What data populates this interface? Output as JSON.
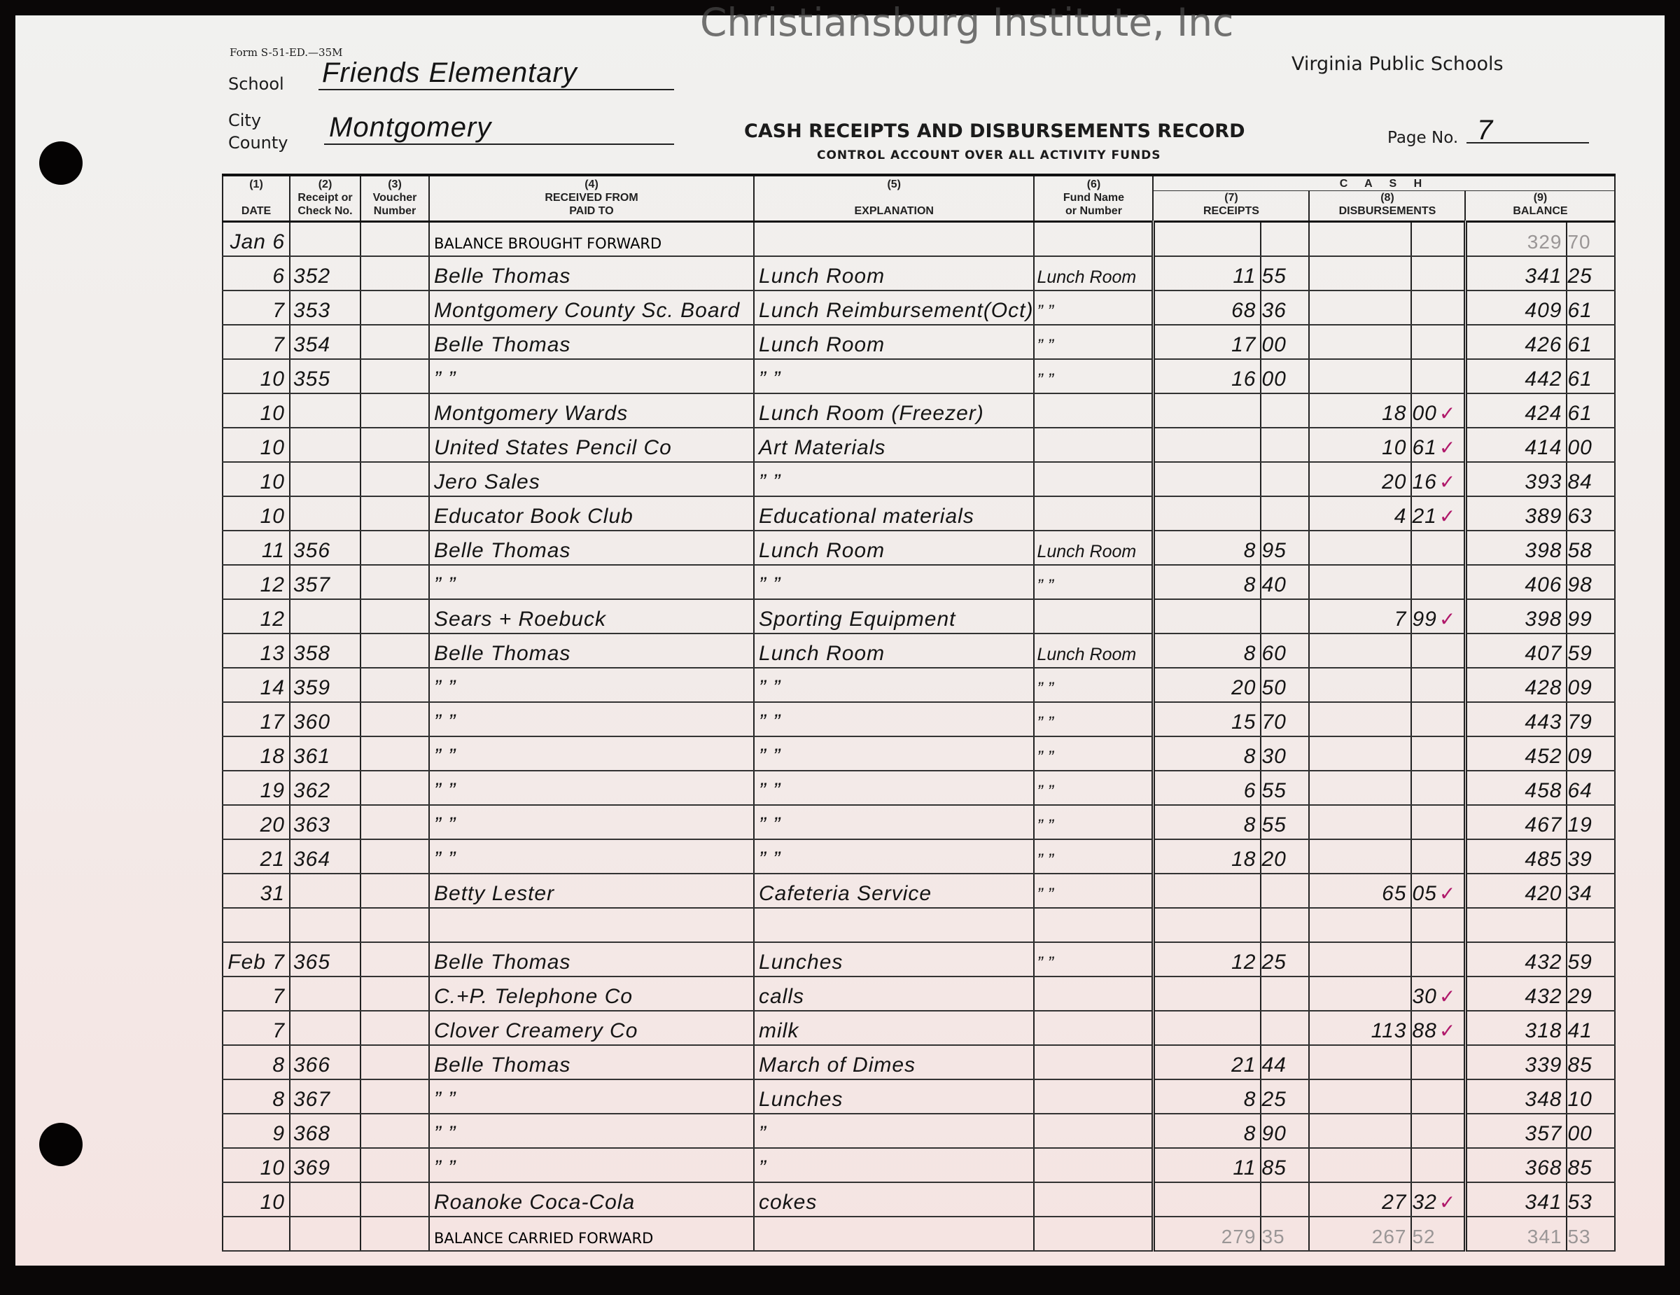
{
  "form_code": "Form S-51-ED.—35M",
  "issuer": "Virginia Public Schools",
  "labels": {
    "school": "School",
    "city": "City",
    "county": "County",
    "page": "Page No."
  },
  "school": "Friends Elementary",
  "county": "Montgomery",
  "title": "CASH RECEIPTS AND DISBURSEMENTS RECORD",
  "subtitle": "CONTROL ACCOUNT OVER ALL ACTIVITY FUNDS",
  "page_no": "7",
  "columns": {
    "c1": [
      "(1)",
      "DATE"
    ],
    "c2": [
      "(2)",
      "Receipt or",
      "Check No."
    ],
    "c3": [
      "(3)",
      "Voucher",
      "Number"
    ],
    "c4": [
      "(4)",
      "RECEIVED FROM",
      "PAID TO"
    ],
    "c5": [
      "(5)",
      "EXPLANATION"
    ],
    "c6": [
      "(6)",
      "Fund Name",
      "or Number"
    ],
    "cash": "C A S H",
    "c7": [
      "(7)",
      "RECEIPTS"
    ],
    "c8": [
      "(8)",
      "DISBURSEMENTS"
    ],
    "c9": [
      "(9)",
      "BALANCE"
    ]
  },
  "rows": [
    {
      "date": "Jan 6",
      "check": "",
      "voucher": "",
      "party": "BALANCE BROUGHT FORWARD",
      "printed": true,
      "explanation": "",
      "fund": "",
      "receipt": [
        "",
        ""
      ],
      "disb": [
        "",
        ""
      ],
      "balance": [
        "329",
        "70"
      ],
      "balance_pencil": true
    },
    {
      "date": "6",
      "check": "352",
      "party": "Belle Thomas",
      "explanation": "Lunch Room",
      "fund": "Lunch Room",
      "receipt": [
        "11",
        "55"
      ],
      "disb": [
        "",
        ""
      ],
      "balance": [
        "341",
        "25"
      ]
    },
    {
      "date": "7",
      "check": "353",
      "party": "Montgomery County Sc. Board",
      "explanation": "Lunch Reimbursement(Oct)",
      "fund": "”   ”",
      "receipt": [
        "68",
        "36"
      ],
      "disb": [
        "",
        ""
      ],
      "balance": [
        "409",
        "61"
      ]
    },
    {
      "date": "7",
      "check": "354",
      "party": "Belle Thomas",
      "explanation": "Lunch Room",
      "fund": "”   ”",
      "receipt": [
        "17",
        "00"
      ],
      "disb": [
        "",
        ""
      ],
      "balance": [
        "426",
        "61"
      ]
    },
    {
      "date": "10",
      "check": "355",
      "party": "”      ”",
      "explanation": "”      ”",
      "fund": "”   ”",
      "receipt": [
        "16",
        "00"
      ],
      "disb": [
        "",
        ""
      ],
      "balance": [
        "442",
        "61"
      ]
    },
    {
      "date": "10",
      "check": "",
      "party": "Montgomery Wards",
      "explanation": "Lunch Room (Freezer)",
      "fund": "",
      "receipt": [
        "",
        ""
      ],
      "disb": [
        "18",
        "00"
      ],
      "mark": "✓",
      "balance": [
        "424",
        "61"
      ]
    },
    {
      "date": "10",
      "check": "",
      "party": "United States Pencil Co",
      "explanation": "Art Materials",
      "fund": "",
      "receipt": [
        "",
        ""
      ],
      "disb": [
        "10",
        "61"
      ],
      "mark": "✓",
      "balance": [
        "414",
        "00"
      ]
    },
    {
      "date": "10",
      "check": "",
      "party": "Jero Sales",
      "explanation": "”      ”",
      "fund": "",
      "receipt": [
        "",
        ""
      ],
      "disb": [
        "20",
        "16"
      ],
      "mark": "✓",
      "balance": [
        "393",
        "84"
      ]
    },
    {
      "date": "10",
      "check": "",
      "party": "Educator Book Club",
      "explanation": "Educational materials",
      "fund": "",
      "receipt": [
        "",
        ""
      ],
      "disb": [
        "4",
        "21"
      ],
      "mark": "✓",
      "balance": [
        "389",
        "63"
      ]
    },
    {
      "date": "11",
      "check": "356",
      "party": "Belle Thomas",
      "explanation": "Lunch Room",
      "fund": "Lunch Room",
      "receipt": [
        "8",
        "95"
      ],
      "disb": [
        "",
        ""
      ],
      "balance": [
        "398",
        "58"
      ]
    },
    {
      "date": "12",
      "check": "357",
      "party": "”      ”",
      "explanation": "”      ”",
      "fund": "”   ”",
      "receipt": [
        "8",
        "40"
      ],
      "disb": [
        "",
        ""
      ],
      "balance": [
        "406",
        "98"
      ]
    },
    {
      "date": "12",
      "check": "",
      "party": "Sears + Roebuck",
      "explanation": "Sporting Equipment",
      "fund": "",
      "receipt": [
        "",
        ""
      ],
      "disb": [
        "7",
        "99"
      ],
      "mark": "✓",
      "balance": [
        "398",
        "99"
      ]
    },
    {
      "date": "13",
      "check": "358",
      "party": "Belle Thomas",
      "explanation": "Lunch Room",
      "fund": "Lunch Room",
      "receipt": [
        "8",
        "60"
      ],
      "disb": [
        "",
        ""
      ],
      "balance": [
        "407",
        "59"
      ]
    },
    {
      "date": "14",
      "check": "359",
      "party": "”      ”",
      "explanation": "”      ”",
      "fund": "”   ”",
      "receipt": [
        "20",
        "50"
      ],
      "disb": [
        "",
        ""
      ],
      "balance": [
        "428",
        "09"
      ]
    },
    {
      "date": "17",
      "check": "360",
      "party": "”      ”",
      "explanation": "”      ”",
      "fund": "”   ”",
      "receipt": [
        "15",
        "70"
      ],
      "disb": [
        "",
        ""
      ],
      "balance": [
        "443",
        "79"
      ]
    },
    {
      "date": "18",
      "check": "361",
      "party": "”      ”",
      "explanation": "”      ”",
      "fund": "”   ”",
      "receipt": [
        "8",
        "30"
      ],
      "disb": [
        "",
        ""
      ],
      "balance": [
        "452",
        "09"
      ]
    },
    {
      "date": "19",
      "check": "362",
      "party": "”      ”",
      "explanation": "”      ”",
      "fund": "”   ”",
      "receipt": [
        "6",
        "55"
      ],
      "disb": [
        "",
        ""
      ],
      "balance": [
        "458",
        "64"
      ]
    },
    {
      "date": "20",
      "check": "363",
      "party": "”      ”",
      "explanation": "”      ”",
      "fund": "”   ”",
      "receipt": [
        "8",
        "55"
      ],
      "disb": [
        "",
        ""
      ],
      "balance": [
        "467",
        "19"
      ]
    },
    {
      "date": "21",
      "check": "364",
      "party": "”      ”",
      "explanation": "”      ”",
      "fund": "”   ”",
      "receipt": [
        "18",
        "20"
      ],
      "disb": [
        "",
        ""
      ],
      "balance": [
        "485",
        "39"
      ]
    },
    {
      "date": "31",
      "check": "",
      "party": "Betty Lester",
      "explanation": "Cafeteria Service",
      "fund": "”   ”",
      "receipt": [
        "",
        ""
      ],
      "disb": [
        "65",
        "05"
      ],
      "mark": "✓",
      "balance": [
        "420",
        "34"
      ]
    },
    {
      "date": "",
      "check": "",
      "party": "",
      "explanation": "",
      "fund": "",
      "receipt": [
        "",
        ""
      ],
      "disb": [
        "",
        ""
      ],
      "balance": [
        "",
        ""
      ]
    },
    {
      "date": "Feb 7",
      "check": "365",
      "party": "Belle Thomas",
      "explanation": "Lunches",
      "fund": "”   ”",
      "receipt": [
        "12",
        "25"
      ],
      "disb": [
        "",
        ""
      ],
      "balance": [
        "432",
        "59"
      ]
    },
    {
      "date": "7",
      "check": "",
      "party": "C.+P. Telephone Co",
      "explanation": "calls",
      "fund": "",
      "receipt": [
        "",
        ""
      ],
      "disb": [
        "",
        "30"
      ],
      "mark": "✓",
      "balance": [
        "432",
        "29"
      ]
    },
    {
      "date": "7",
      "check": "",
      "party": "Clover Creamery Co",
      "explanation": "milk",
      "fund": "",
      "receipt": [
        "",
        ""
      ],
      "disb": [
        "113",
        "88"
      ],
      "mark": "✓",
      "balance": [
        "318",
        "41"
      ]
    },
    {
      "date": "8",
      "check": "366",
      "party": "Belle Thomas",
      "explanation": "March of Dimes",
      "fund": "",
      "receipt": [
        "21",
        "44"
      ],
      "disb": [
        "",
        ""
      ],
      "balance": [
        "339",
        "85"
      ]
    },
    {
      "date": "8",
      "check": "367",
      "party": "”      ”",
      "explanation": "Lunches",
      "fund": "",
      "receipt": [
        "8",
        "25"
      ],
      "disb": [
        "",
        ""
      ],
      "balance": [
        "348",
        "10"
      ]
    },
    {
      "date": "9",
      "check": "368",
      "party": "”      ”",
      "explanation": "”",
      "fund": "",
      "receipt": [
        "8",
        "90"
      ],
      "disb": [
        "",
        ""
      ],
      "balance": [
        "357",
        "00"
      ]
    },
    {
      "date": "10",
      "check": "369",
      "party": "”      ”",
      "explanation": "”",
      "fund": "",
      "receipt": [
        "11",
        "85"
      ],
      "disb": [
        "",
        ""
      ],
      "balance": [
        "368",
        "85"
      ]
    },
    {
      "date": "10",
      "check": "",
      "party": "Roanoke Coca-Cola",
      "explanation": "cokes",
      "fund": "",
      "receipt": [
        "",
        ""
      ],
      "disb": [
        "27",
        "32"
      ],
      "mark": "✓",
      "balance": [
        "341",
        "53"
      ]
    },
    {
      "date": "",
      "check": "",
      "party": "BALANCE CARRIED FORWARD",
      "printed": true,
      "explanation": "",
      "fund": "",
      "receipt": [
        "279",
        "35"
      ],
      "disb": [
        "267",
        "52"
      ],
      "balance": [
        "341",
        "53"
      ],
      "all_pencil": true
    }
  ],
  "watermark": "Christiansburg Institute, Inc",
  "colors": {
    "ink": "#141414",
    "check_mark": "#b0186a",
    "pencil": "#9a9696"
  }
}
